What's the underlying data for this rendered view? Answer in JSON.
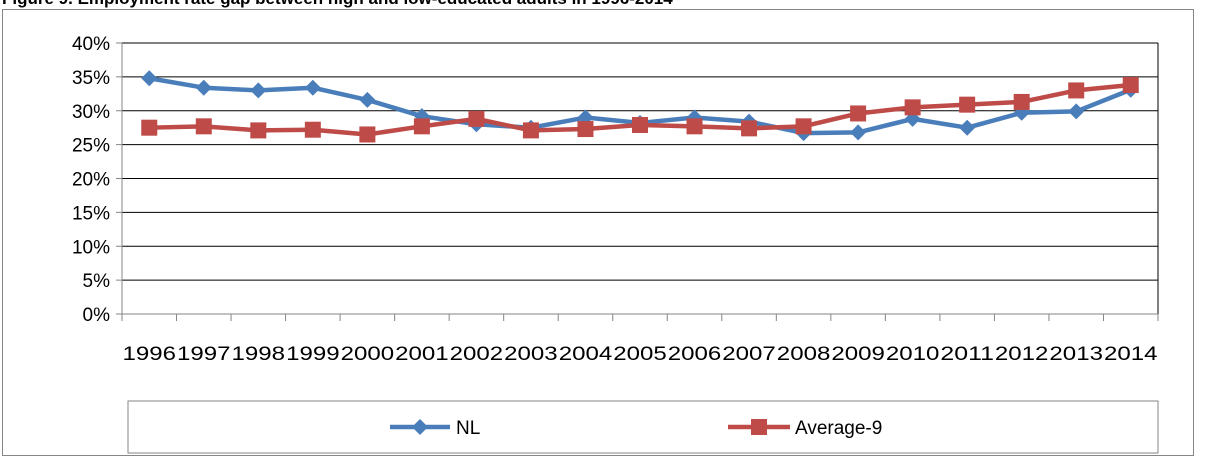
{
  "caption": "Figure 9. Employment rate gap between high and low-educated adults in 1996-2014",
  "colors": {
    "nl": "#4a7ebb",
    "avg": "#be4b48",
    "axis": "#868686",
    "grid": "#000000"
  },
  "chart_data": {
    "type": "line",
    "categories": [
      "1996",
      "1997",
      "1998",
      "1999",
      "2000",
      "2001",
      "2002",
      "2003",
      "2004",
      "2005",
      "2006",
      "2007",
      "2008",
      "2009",
      "2010",
      "2011",
      "2012",
      "2013",
      "2014"
    ],
    "series": [
      {
        "name": "NL",
        "color": "#4a7ebb",
        "marker": "diamond",
        "values": [
          34.8,
          33.4,
          33.0,
          33.4,
          31.6,
          29.2,
          28.0,
          27.5,
          29.0,
          28.2,
          29.0,
          28.4,
          26.7,
          26.8,
          28.8,
          27.5,
          29.7,
          29.9,
          33.1
        ]
      },
      {
        "name": "Average-9",
        "color": "#be4b48",
        "marker": "square",
        "values": [
          27.5,
          27.7,
          27.1,
          27.2,
          26.5,
          27.7,
          28.8,
          27.1,
          27.3,
          27.9,
          27.7,
          27.4,
          27.7,
          29.6,
          30.5,
          30.9,
          31.3,
          33.0,
          33.8
        ]
      }
    ],
    "y_ticks": [
      "0%",
      "5%",
      "10%",
      "15%",
      "20%",
      "25%",
      "30%",
      "35%",
      "40%"
    ],
    "ylim": [
      0,
      40
    ],
    "y_unit": "%",
    "grid": true,
    "legend_position": "bottom",
    "title": "",
    "xlabel": "",
    "ylabel": ""
  }
}
